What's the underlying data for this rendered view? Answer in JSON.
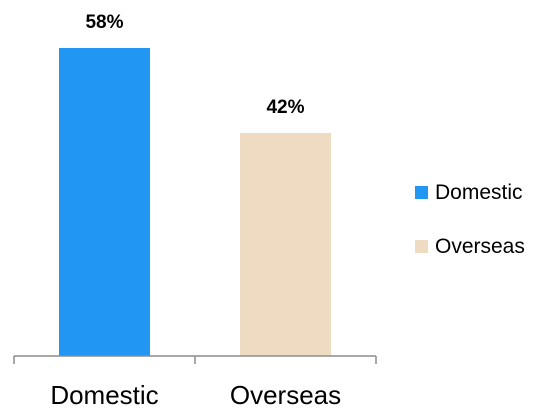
{
  "chart_data": {
    "type": "bar",
    "categories": [
      "Domestic",
      "Overseas"
    ],
    "values": [
      58,
      42
    ],
    "value_labels": [
      "58%",
      "42%"
    ],
    "colors": [
      "#2196F3",
      "#EFDBC2"
    ],
    "axis_color": "#8C8C8C",
    "ylim": [
      0,
      58
    ],
    "grid": false,
    "legend": {
      "position": "right",
      "entries": [
        "Domestic",
        "Overseas"
      ]
    }
  }
}
